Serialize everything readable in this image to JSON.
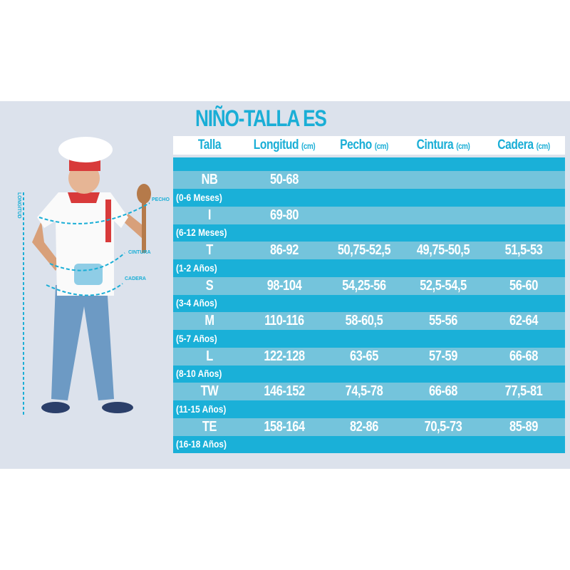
{
  "title": "NIÑO-TALLA ES",
  "headers": [
    {
      "label": "Talla",
      "unit": ""
    },
    {
      "label": "Longitud",
      "unit": "(cm)"
    },
    {
      "label": "Pecho",
      "unit": "(cm)"
    },
    {
      "label": "Cintura",
      "unit": "(cm)"
    },
    {
      "label": "Cadera",
      "unit": "(cm)"
    }
  ],
  "rows": [
    {
      "talla": "NB",
      "age": "(0-6 Meses)",
      "longitud": "50-68",
      "pecho": "",
      "cintura": "",
      "cadera": ""
    },
    {
      "talla": "I",
      "age": "(6-12 Meses)",
      "longitud": "69-80",
      "pecho": "",
      "cintura": "",
      "cadera": ""
    },
    {
      "talla": "T",
      "age": "(1-2 Años)",
      "longitud": "86-92",
      "pecho": "50,75-52,5",
      "cintura": "49,75-50,5",
      "cadera": "51,5-53"
    },
    {
      "talla": "S",
      "age": "(3-4 Años)",
      "longitud": "98-104",
      "pecho": "54,25-56",
      "cintura": "52,5-54,5",
      "cadera": "56-60"
    },
    {
      "talla": "M",
      "age": "(5-7 Años)",
      "longitud": "110-116",
      "pecho": "58-60,5",
      "cintura": "55-56",
      "cadera": "62-64"
    },
    {
      "talla": "L",
      "age": "(8-10 Años)",
      "longitud": "122-128",
      "pecho": "63-65",
      "cintura": "57-59",
      "cadera": "66-68"
    },
    {
      "talla": "TW",
      "age": "(11-15 Años)",
      "longitud": "146-152",
      "pecho": "74,5-78",
      "cintura": "66-68",
      "cadera": "77,5-81"
    },
    {
      "talla": "TE",
      "age": "(16-18 Años)",
      "longitud": "158-164",
      "pecho": "82-86",
      "cintura": "70,5-73",
      "cadera": "85-89"
    }
  ],
  "measure_labels": {
    "longitud": "LONGITUD",
    "pecho": "PECHO",
    "cintura": "CINTURA",
    "cadera": "CADERA"
  },
  "colors": {
    "accent": "#1aaed6",
    "row_light": "#74c4dc",
    "row_dark": "#1ab0d8",
    "band": "#dce2ec"
  }
}
